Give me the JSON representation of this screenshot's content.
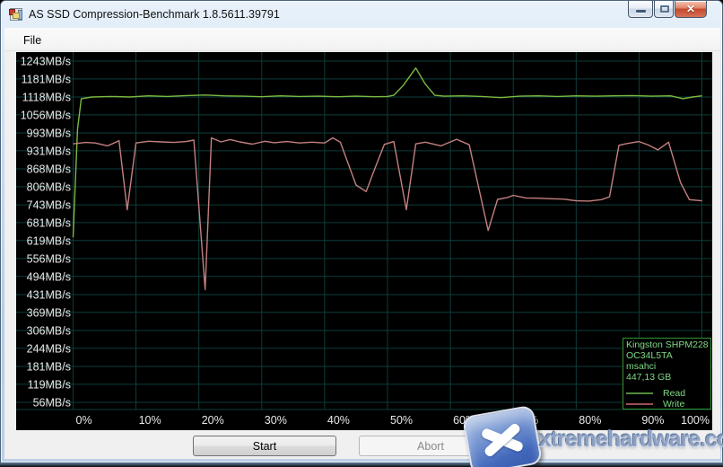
{
  "window": {
    "title": "AS SSD Compression-Benchmark 1.8.5611.39791"
  },
  "menu": {
    "file": "File"
  },
  "buttons": {
    "start": "Start",
    "abort": "Abort"
  },
  "legend": {
    "device": "Kingston SHPM228",
    "firmware": "OC34L5TA",
    "driver": "msahci",
    "capacity": "447,13 GB",
    "read_label": "Read",
    "write_label": "Write"
  },
  "watermark": {
    "text": "xtremehardware.com"
  },
  "colors": {
    "read_line": "#7cb840",
    "write_line": "#c48080",
    "read_sample": "#4f8c3c",
    "write_sample": "#9c4f4f",
    "grid": "#0d3e3c",
    "tick_text": "#e8e8e8",
    "chart_bg": "#000000",
    "legend_text": "#7fd884",
    "legend_border": "#2f9632"
  },
  "chart_data": {
    "type": "line",
    "grid": true,
    "legend_position": "bottom-right",
    "xlim": [
      0,
      100
    ],
    "ylim": [
      56,
      1243
    ],
    "y_tick_unit": "MB/s",
    "y_ticks": [
      1243,
      1181,
      1118,
      1056,
      993,
      931,
      868,
      806,
      743,
      681,
      619,
      556,
      494,
      431,
      369,
      306,
      244,
      181,
      119,
      56
    ],
    "x_tick_labels": [
      "0%",
      "10%",
      "20%",
      "30%",
      "40%",
      "50%",
      "60%",
      "70%",
      "80%",
      "90%",
      "100%"
    ],
    "series": [
      {
        "name": "Read",
        "color": "#7cb840",
        "points": [
          [
            0,
            630
          ],
          [
            0.7,
            1005
          ],
          [
            1.3,
            1112
          ],
          [
            3,
            1118
          ],
          [
            6,
            1120
          ],
          [
            9,
            1118
          ],
          [
            12,
            1122
          ],
          [
            15,
            1120
          ],
          [
            18,
            1123
          ],
          [
            21,
            1125
          ],
          [
            24,
            1122
          ],
          [
            27,
            1121
          ],
          [
            30,
            1119
          ],
          [
            33,
            1122
          ],
          [
            36,
            1120
          ],
          [
            39,
            1121
          ],
          [
            42,
            1119
          ],
          [
            45,
            1121
          ],
          [
            48,
            1119
          ],
          [
            50,
            1120
          ],
          [
            51,
            1124
          ],
          [
            52.5,
            1158
          ],
          [
            54.5,
            1219
          ],
          [
            56,
            1163
          ],
          [
            57.5,
            1124
          ],
          [
            59,
            1121
          ],
          [
            62,
            1122
          ],
          [
            65,
            1120
          ],
          [
            68,
            1116
          ],
          [
            71,
            1121
          ],
          [
            74,
            1122
          ],
          [
            77,
            1120
          ],
          [
            80,
            1122
          ],
          [
            83,
            1121
          ],
          [
            86,
            1122
          ],
          [
            89,
            1123
          ],
          [
            92,
            1121
          ],
          [
            95,
            1122
          ],
          [
            97,
            1112
          ],
          [
            98.5,
            1118
          ],
          [
            100,
            1122
          ]
        ]
      },
      {
        "name": "Write",
        "color": "#c48080",
        "points": [
          [
            0,
            955
          ],
          [
            2,
            960
          ],
          [
            3.5,
            958
          ],
          [
            5.5,
            948
          ],
          [
            7.3,
            966
          ],
          [
            8.6,
            726
          ],
          [
            10,
            958
          ],
          [
            12,
            964
          ],
          [
            14,
            962
          ],
          [
            16,
            960
          ],
          [
            18,
            963
          ],
          [
            19.2,
            968
          ],
          [
            21,
            448
          ],
          [
            22,
            976
          ],
          [
            23.5,
            962
          ],
          [
            25,
            970
          ],
          [
            26.5,
            962
          ],
          [
            28.5,
            954
          ],
          [
            30.5,
            964
          ],
          [
            32,
            959
          ],
          [
            34,
            963
          ],
          [
            36,
            958
          ],
          [
            38,
            961
          ],
          [
            40,
            958
          ],
          [
            41.3,
            976
          ],
          [
            42.5,
            961
          ],
          [
            45,
            812
          ],
          [
            46.6,
            789
          ],
          [
            48,
            870
          ],
          [
            49.5,
            953
          ],
          [
            51,
            963
          ],
          [
            53,
            726
          ],
          [
            54.5,
            955
          ],
          [
            56,
            961
          ],
          [
            58.5,
            948
          ],
          [
            61,
            971
          ],
          [
            63,
            952
          ],
          [
            66,
            654
          ],
          [
            67.5,
            762
          ],
          [
            69,
            768
          ],
          [
            70,
            776
          ],
          [
            72,
            767
          ],
          [
            74,
            766
          ],
          [
            76,
            764
          ],
          [
            78,
            763
          ],
          [
            80,
            757
          ],
          [
            82,
            756
          ],
          [
            84,
            761
          ],
          [
            85.3,
            771
          ],
          [
            86.8,
            950
          ],
          [
            88,
            956
          ],
          [
            90,
            963
          ],
          [
            91.5,
            951
          ],
          [
            93,
            934
          ],
          [
            94.7,
            961
          ],
          [
            96.6,
            820
          ],
          [
            98,
            761
          ],
          [
            100,
            757
          ]
        ]
      }
    ]
  }
}
